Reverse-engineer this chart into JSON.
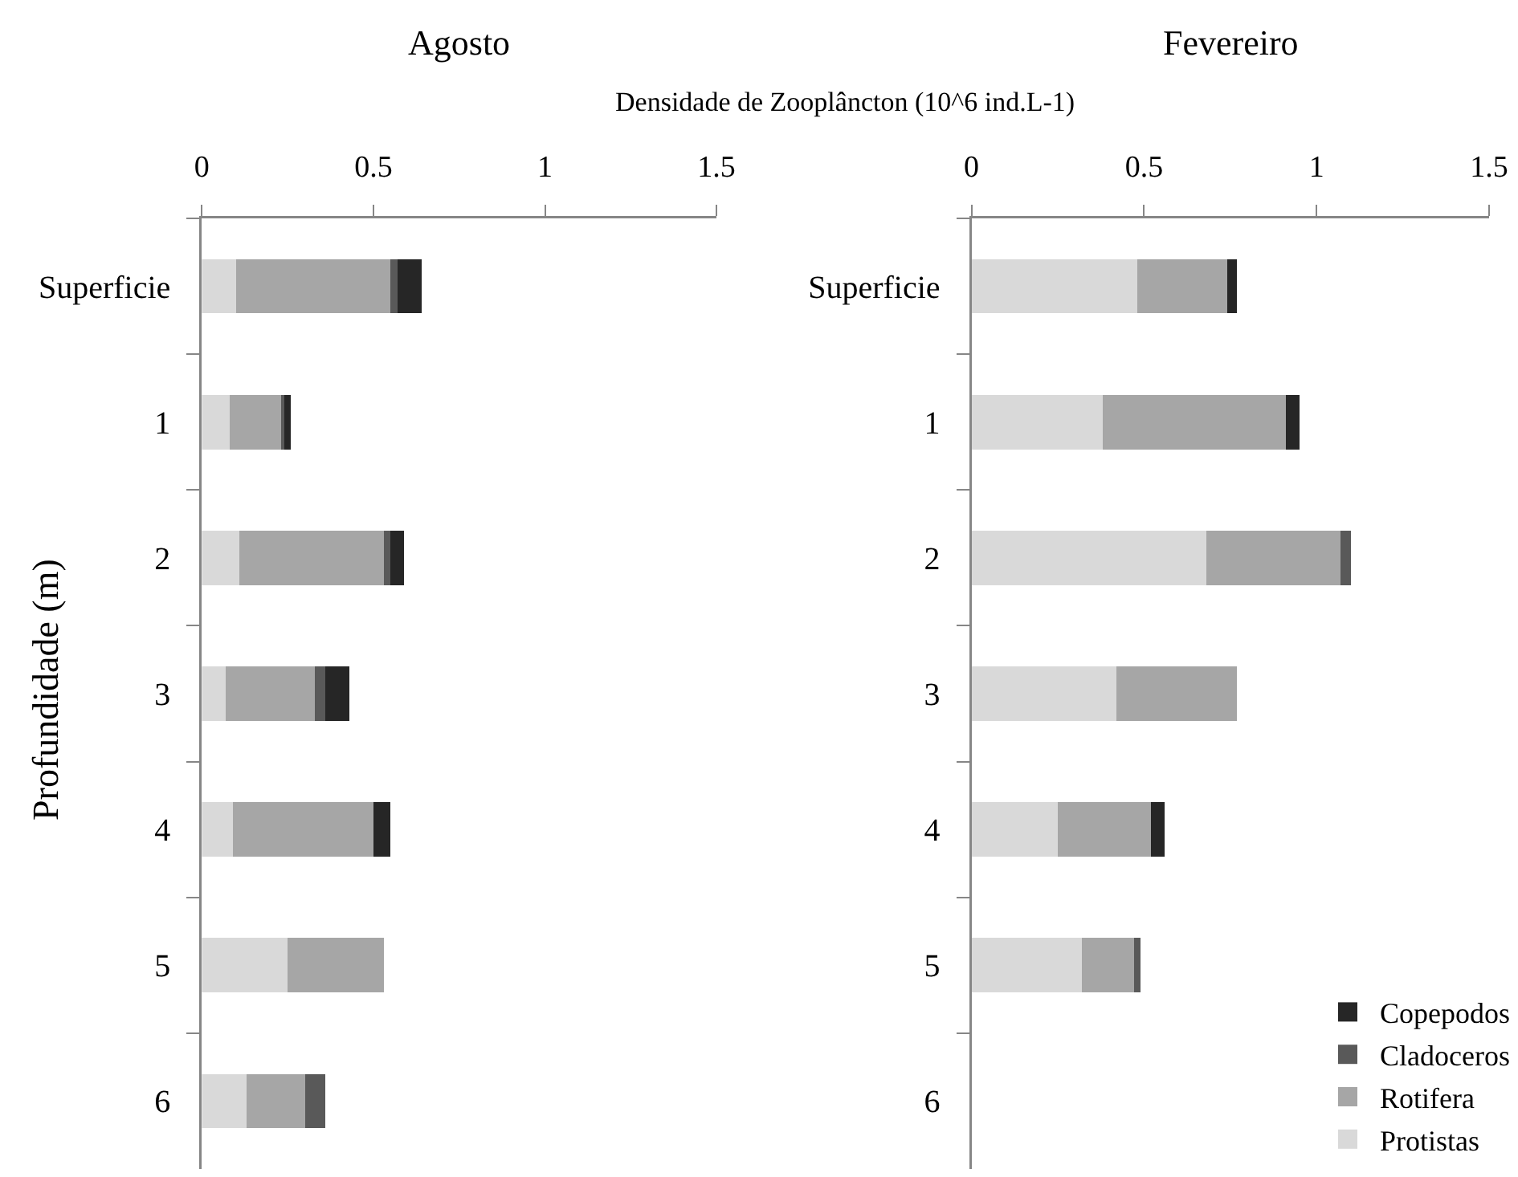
{
  "chart_data": [
    {
      "type": "bar",
      "orientation": "horizontal",
      "stacked": true,
      "title": "Agosto",
      "xlabel": "Densidade de Zooplâncton (10^6 ind.L-1)",
      "ylabel": "Profundidade (m)",
      "categories": [
        "Superficie",
        "1",
        "2",
        "3",
        "4",
        "5",
        "6"
      ],
      "series": [
        {
          "color": "#d9d9d9",
          "values": [
            0.1,
            0.08,
            0.11,
            0.07,
            0.09,
            0.25,
            0.13
          ]
        },
        {
          "color": "#a6a6a6",
          "values": [
            0.45,
            0.15,
            0.42,
            0.26,
            0.41,
            0.28,
            0.17
          ]
        },
        {
          "color": "#595959",
          "values": [
            0.02,
            0.01,
            0.02,
            0.03,
            0,
            0,
            0.06
          ]
        },
        {
          "color": "#262626",
          "values": [
            0.07,
            0.02,
            0.04,
            0.07,
            0.05,
            0,
            0
          ]
        }
      ],
      "xlim": [
        0,
        1.5
      ],
      "xticks": [
        0,
        0.5,
        1,
        1.5
      ]
    },
    {
      "type": "bar",
      "orientation": "horizontal",
      "stacked": true,
      "title": "Fevereiro",
      "categories": [
        "Superficie",
        "1",
        "2",
        "3",
        "4",
        "5",
        "6"
      ],
      "series": [
        {
          "name": "Protistas",
          "color": "#d9d9d9",
          "values": [
            0.48,
            0.38,
            0.68,
            0.42,
            0.25,
            0.32,
            null
          ]
        },
        {
          "name": "Rotifera",
          "color": "#a6a6a6",
          "values": [
            0.26,
            0.53,
            0.39,
            0.35,
            0.27,
            0.15,
            null
          ]
        },
        {
          "name": "Cladoceros",
          "color": "#595959",
          "values": [
            0,
            0,
            0.03,
            0,
            0,
            0.02,
            null
          ]
        },
        {
          "name": "Copepodos",
          "color": "#262626",
          "values": [
            0.03,
            0.04,
            0,
            0,
            0.04,
            0,
            null
          ]
        }
      ],
      "xlim": [
        0,
        1.5
      ],
      "xticks": [
        0,
        0.5,
        1,
        1.5
      ],
      "legend": "bottom right"
    }
  ]
}
